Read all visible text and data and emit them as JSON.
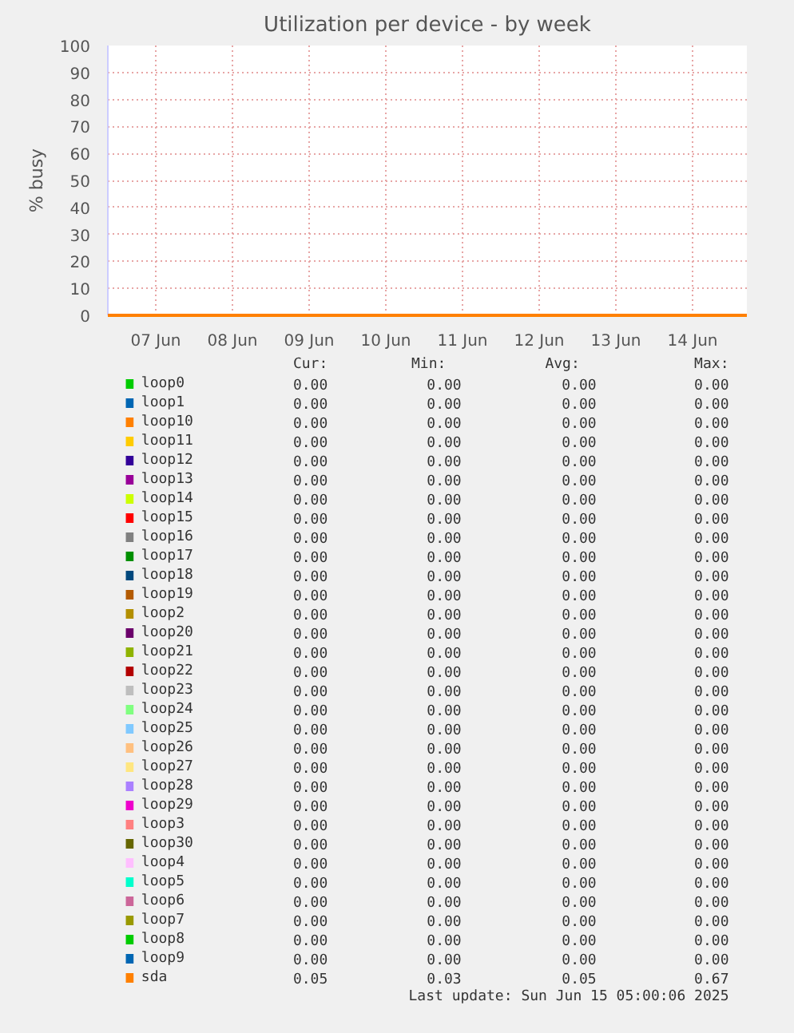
{
  "chart_data": {
    "type": "line",
    "title": "Utilization per device - by week",
    "ylabel": "% busy",
    "x": [
      "2025-06-06T21:00",
      "2025-06-15T05:00"
    ],
    "xlim": [
      "2025-06-06T21:00",
      "2025-06-15T05:00"
    ],
    "xticks": [
      {
        "value": "2025-06-07T12:00",
        "label": "07 Jun"
      },
      {
        "value": "2025-06-08T12:00",
        "label": "08 Jun"
      },
      {
        "value": "2025-06-09T12:00",
        "label": "09 Jun"
      },
      {
        "value": "2025-06-10T12:00",
        "label": "10 Jun"
      },
      {
        "value": "2025-06-11T12:00",
        "label": "11 Jun"
      },
      {
        "value": "2025-06-12T12:00",
        "label": "12 Jun"
      },
      {
        "value": "2025-06-13T12:00",
        "label": "13 Jun"
      },
      {
        "value": "2025-06-14T12:00",
        "label": "14 Jun"
      }
    ],
    "ylim": [
      0,
      100
    ],
    "yticks": [
      0,
      10,
      20,
      30,
      40,
      50,
      60,
      70,
      80,
      90,
      100
    ],
    "grid": true,
    "legend": "bottom",
    "series": [
      {
        "name": "loop0",
        "color": "#00cc00",
        "values": [
          null,
          null
        ]
      },
      {
        "name": "loop1",
        "color": "#0066b3",
        "values": [
          null,
          null
        ]
      },
      {
        "name": "loop10",
        "color": "#ff8000",
        "values": [
          null,
          null
        ]
      },
      {
        "name": "loop11",
        "color": "#ffcc00",
        "values": [
          null,
          null
        ]
      },
      {
        "name": "loop12",
        "color": "#330099",
        "values": [
          null,
          null
        ]
      },
      {
        "name": "loop13",
        "color": "#990099",
        "values": [
          null,
          null
        ]
      },
      {
        "name": "loop14",
        "color": "#ccff00",
        "values": [
          null,
          null
        ]
      },
      {
        "name": "loop15",
        "color": "#ff0000",
        "values": [
          null,
          null
        ]
      },
      {
        "name": "loop16",
        "color": "#808080",
        "values": [
          null,
          null
        ]
      },
      {
        "name": "loop17",
        "color": "#008f00",
        "values": [
          null,
          null
        ]
      },
      {
        "name": "loop18",
        "color": "#00487d",
        "values": [
          null,
          null
        ]
      },
      {
        "name": "loop19",
        "color": "#b35a00",
        "values": [
          null,
          null
        ]
      },
      {
        "name": "loop2",
        "color": "#b38f00",
        "values": [
          null,
          null
        ]
      },
      {
        "name": "loop20",
        "color": "#6b006b",
        "values": [
          null,
          null
        ]
      },
      {
        "name": "loop21",
        "color": "#8fb300",
        "values": [
          null,
          null
        ]
      },
      {
        "name": "loop22",
        "color": "#b30000",
        "values": [
          null,
          null
        ]
      },
      {
        "name": "loop23",
        "color": "#bebebe",
        "values": [
          null,
          null
        ]
      },
      {
        "name": "loop24",
        "color": "#80ff80",
        "values": [
          null,
          null
        ]
      },
      {
        "name": "loop25",
        "color": "#80c9ff",
        "values": [
          null,
          null
        ]
      },
      {
        "name": "loop26",
        "color": "#ffc080",
        "values": [
          null,
          null
        ]
      },
      {
        "name": "loop27",
        "color": "#ffe680",
        "values": [
          null,
          null
        ]
      },
      {
        "name": "loop28",
        "color": "#aa80ff",
        "values": [
          null,
          null
        ]
      },
      {
        "name": "loop29",
        "color": "#ee00cc",
        "values": [
          null,
          null
        ]
      },
      {
        "name": "loop3",
        "color": "#ff8080",
        "values": [
          null,
          null
        ]
      },
      {
        "name": "loop30",
        "color": "#666600",
        "values": [
          null,
          null
        ]
      },
      {
        "name": "loop4",
        "color": "#ffbfff",
        "values": [
          null,
          null
        ]
      },
      {
        "name": "loop5",
        "color": "#00ffcc",
        "values": [
          null,
          null
        ]
      },
      {
        "name": "loop6",
        "color": "#cc6699",
        "values": [
          null,
          null
        ]
      },
      {
        "name": "loop7",
        "color": "#999900",
        "values": [
          null,
          null
        ]
      },
      {
        "name": "loop8",
        "color": "#00cc00",
        "values": [
          null,
          null
        ]
      },
      {
        "name": "loop9",
        "color": "#0066b3",
        "values": [
          null,
          null
        ]
      },
      {
        "name": "sda",
        "color": "#ff8000",
        "values": [
          0,
          0
        ]
      }
    ],
    "annotations": [
      "Cur:",
      "Min:",
      "Avg:",
      "Max:",
      "0.00",
      "0.00",
      "0.00",
      "0.00",
      "0.00",
      "0.00",
      "0.00",
      "0.00",
      "0.00",
      "0.00",
      "0.00",
      "0.00",
      "0.00",
      "0.00",
      "0.00",
      "0.00",
      "0.00",
      "0.00",
      "0.00",
      "0.00",
      "0.00",
      "0.00",
      "0.00",
      "0.00",
      "0.00",
      "0.00",
      "0.00",
      "0.00",
      "0.00",
      "0.00",
      "0.00",
      "0.00",
      "0.00",
      "0.00",
      "0.00",
      "0.00",
      "0.00",
      "0.00",
      "0.00",
      "0.00",
      "0.00",
      "0.00",
      "0.00",
      "0.00",
      "0.00",
      "0.00",
      "0.00",
      "0.00",
      "0.00",
      "0.00",
      "0.00",
      "0.00",
      "0.00",
      "0.00",
      "0.00",
      "0.00",
      "0.00",
      "0.00",
      "0.00",
      "0.00",
      "0.00",
      "0.00",
      "0.00",
      "0.00",
      "0.00",
      "0.00",
      "0.00",
      "0.00",
      "0.00",
      "0.00",
      "0.00",
      "0.00",
      "0.00",
      "0.00",
      "0.00",
      "0.00",
      "0.00",
      "0.00",
      "0.00",
      "0.00",
      "0.00",
      "0.00",
      "0.00",
      "0.00",
      "0.00",
      "0.00",
      "0.00",
      "0.00",
      "0.00",
      "0.00",
      "0.00",
      "0.00",
      "0.00",
      "0.00",
      "0.00",
      "0.00",
      "0.00",
      "0.00",
      "0.00",
      "0.00",
      "0.00",
      "0.00",
      "0.00",
      "0.00",
      "0.00",
      "0.00",
      "0.00",
      "0.00",
      "0.00",
      "0.00",
      "0.00",
      "0.00",
      "0.00",
      "0.00",
      "0.00",
      "0.00",
      "0.00",
      "0.00",
      "0.00",
      "0.00",
      "0.00",
      "0.00",
      "0.00",
      "0.00",
      "0.05",
      "0.03",
      "0.05",
      "0.67",
      "Last update: Sun Jun 15 05:00:06 2025"
    ]
  }
}
